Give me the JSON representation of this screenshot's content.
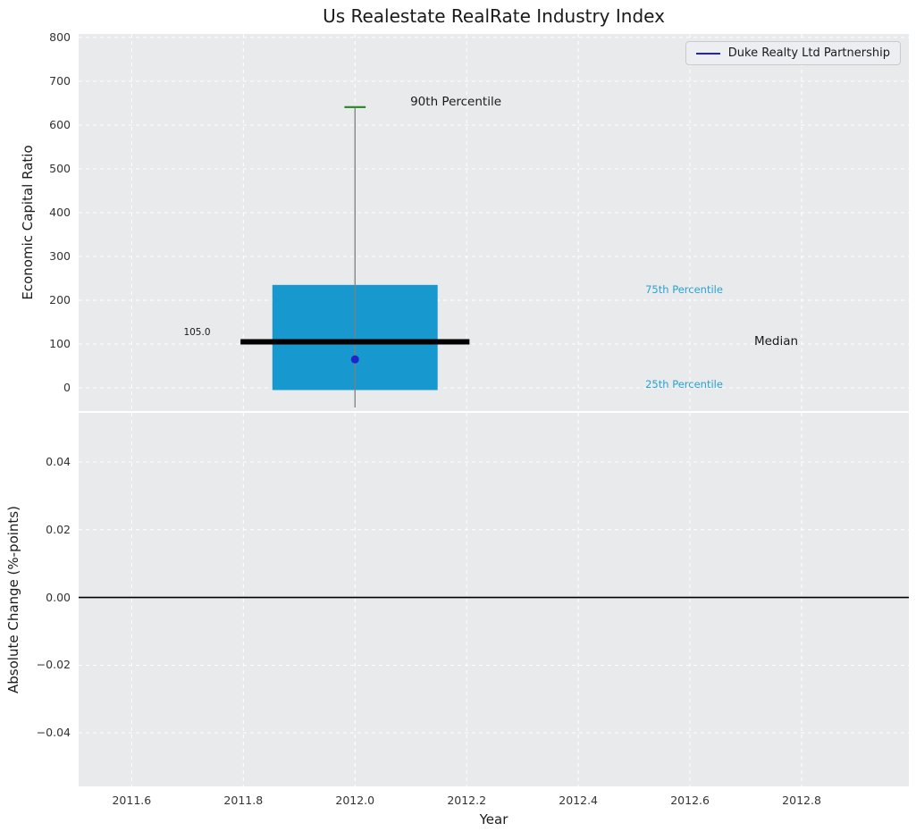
{
  "title": "Us Realestate RealRate Industry Index",
  "legend": {
    "label": "Duke Realty Ltd Partnership"
  },
  "colors": {
    "figure_bg": "#ffffff",
    "axes_bg": "#e9eaec",
    "grid": "#ffffff",
    "box_fill": "#1799cf",
    "median_line": "#000000",
    "whisker": "#7f7f7f",
    "percentile90_cap": "#2e8b2e",
    "series_blue": "#2222cc",
    "annotation_cyan": "#29a3cf",
    "zero_line": "#000000",
    "legend_border": "#c9cacd",
    "tick_text": "#333333"
  },
  "chart_data": [
    {
      "type": "boxplot",
      "title": "Us Realestate RealRate Industry Index",
      "ylabel": "Economic Capital Ratio",
      "xlim": [
        2011.505,
        2012.992
      ],
      "ylim": [
        -53,
        808
      ],
      "grid": true,
      "yticks": [
        {
          "v": 0,
          "label": "0"
        },
        {
          "v": 100,
          "label": "100"
        },
        {
          "v": 200,
          "label": "200"
        },
        {
          "v": 300,
          "label": "300"
        },
        {
          "v": 400,
          "label": "400"
        },
        {
          "v": 500,
          "label": "500"
        },
        {
          "v": 600,
          "label": "600"
        },
        {
          "v": 700,
          "label": "700"
        },
        {
          "v": 800,
          "label": "800"
        }
      ],
      "box": {
        "x": 2012.0,
        "q25": -5,
        "median": 105.0,
        "q75": 235,
        "p90": 641,
        "whisker_low": -45,
        "box_half_width": 0.148,
        "median_half_width": 0.205,
        "cap_half_width": 0.019
      },
      "series_point": {
        "name": "Duke Realty Ltd Partnership",
        "x": 2012.0,
        "y": 65
      },
      "annotations": [
        {
          "text": "90th Percentile",
          "x": 2012.099,
          "y": 652,
          "color": "#1a1a1a",
          "size": 13.5
        },
        {
          "text": "75th Percentile",
          "x": 2012.52,
          "y": 224,
          "color": "#29a3cf",
          "size": 11.5
        },
        {
          "text": "25th Percentile",
          "x": 2012.52,
          "y": 8,
          "color": "#29a3cf",
          "size": 11.5
        },
        {
          "text": "Median",
          "x": 2012.715,
          "y": 104,
          "color": "#1a1a1a",
          "size": 13.5
        },
        {
          "text": "105.0",
          "x": 2011.693,
          "y": 124,
          "color": "#1a1a1a",
          "size": 10.5
        }
      ]
    },
    {
      "type": "line",
      "ylabel": "Absolute Change (%-points)",
      "xlabel": "Year",
      "xlim": [
        2011.505,
        2012.992
      ],
      "ylim": [
        -0.0558,
        0.0545
      ],
      "grid": true,
      "zero_line": 0.0,
      "yticks": [
        {
          "v": 0.04,
          "label": "0.04"
        },
        {
          "v": 0.02,
          "label": "0.02"
        },
        {
          "v": 0.0,
          "label": "0.00"
        },
        {
          "v": -0.02,
          "label": "−0.02"
        },
        {
          "v": -0.04,
          "label": "−0.04"
        }
      ],
      "xticks": [
        {
          "v": 2011.6,
          "label": "2011.6"
        },
        {
          "v": 2011.8,
          "label": "2011.8"
        },
        {
          "v": 2012.0,
          "label": "2012.0"
        },
        {
          "v": 2012.2,
          "label": "2012.2"
        },
        {
          "v": 2012.4,
          "label": "2012.4"
        },
        {
          "v": 2012.6,
          "label": "2012.6"
        },
        {
          "v": 2012.8,
          "label": "2012.8"
        }
      ],
      "series": []
    }
  ]
}
